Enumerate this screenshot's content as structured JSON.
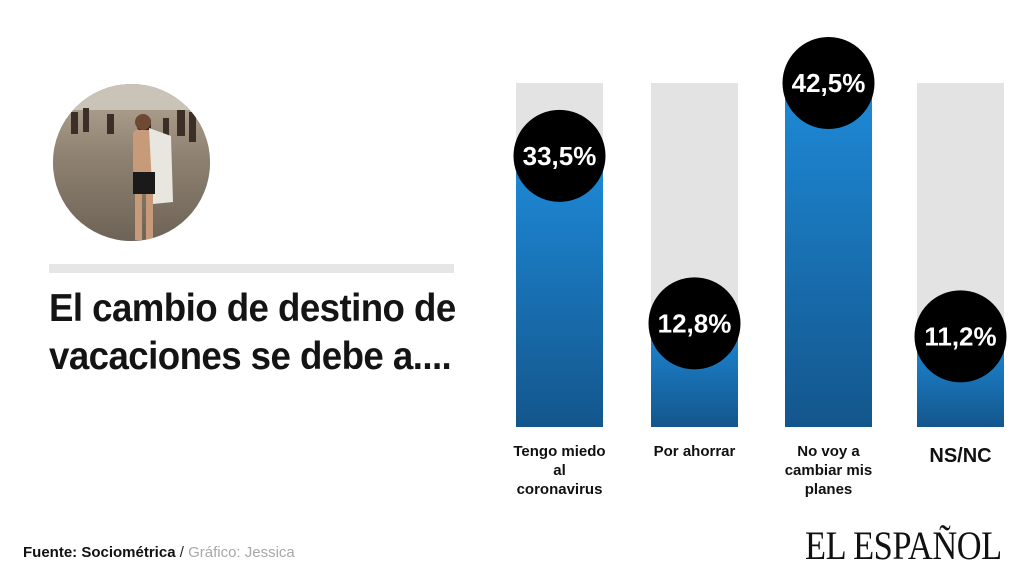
{
  "headline": {
    "line1": "El cambio de destino de",
    "line2": "vacaciones se debe a...."
  },
  "footer": {
    "source_label": "Fuente: Sociométrica",
    "separator": "/",
    "credit": "Gráfico: Jessica"
  },
  "logo_text": "EL ESPAÑOL",
  "colors": {
    "bar_top": "#1e8ad8",
    "bar_bottom": "#13568c",
    "track": "#e3e3e3",
    "badge": "#000000",
    "badge_text": "#ffffff"
  },
  "chart_data": {
    "type": "bar",
    "title": "El cambio de destino de vacaciones se debe a....",
    "categories": [
      [
        "Tengo miedo",
        "al",
        "coronavirus"
      ],
      [
        "Por ahorrar"
      ],
      [
        "No voy a",
        "cambiar mis",
        "planes"
      ],
      [
        "NS/NC"
      ]
    ],
    "values": [
      33.5,
      12.8,
      42.5,
      11.2
    ],
    "value_labels": [
      "33,5%",
      "12,8%",
      "42,5%",
      "11,2%"
    ],
    "ylim": [
      0,
      42.5
    ],
    "grid": false,
    "legend": "none"
  }
}
